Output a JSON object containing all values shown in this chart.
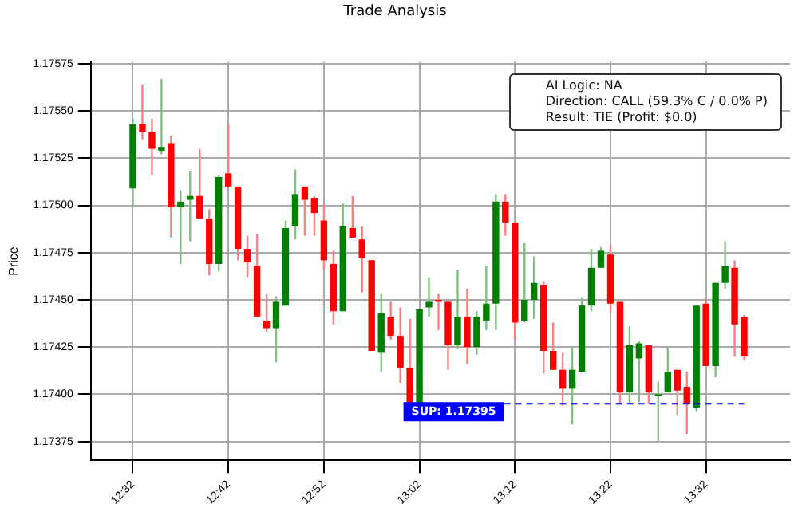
{
  "chart_data": {
    "type": "candlestick",
    "title": "Trade Analysis",
    "ylabel": "Price",
    "x": [
      12.5333,
      12.55,
      12.5667,
      12.5833,
      12.6,
      12.6167,
      12.6333,
      12.65,
      12.6667,
      12.6833,
      12.7,
      12.7167,
      12.7333,
      12.75,
      12.7667,
      12.7833,
      12.8,
      12.8167,
      12.8333,
      12.85,
      12.8667,
      12.8833,
      12.9,
      12.9167,
      12.9333,
      12.95,
      12.9667,
      12.9833,
      13,
      13.0167,
      13.0333,
      13.05,
      13.0667,
      13.0833,
      13.1,
      13.1167,
      13.1333,
      13.15,
      13.1667,
      13.1833,
      13.2,
      13.2167,
      13.2333,
      13.25,
      13.2667,
      13.2833,
      13.3,
      13.3167,
      13.3333,
      13.35,
      13.3667,
      13.3833,
      13.4,
      13.4167,
      13.4333,
      13.45,
      13.4667,
      13.4833,
      13.5,
      13.5167,
      13.5333,
      13.55,
      13.5667,
      13.5833,
      13.6
    ],
    "ohlc": [
      [
        1.17509,
        1.17546,
        1.17499,
        1.17543
      ],
      [
        1.17543,
        1.17564,
        1.17535,
        1.17539
      ],
      [
        1.17539,
        1.17546,
        1.17516,
        1.1753
      ],
      [
        1.17529,
        1.17567,
        1.17527,
        1.17531
      ],
      [
        1.17533,
        1.17537,
        1.17483,
        1.17499
      ],
      [
        1.17499,
        1.17508,
        1.17469,
        1.17502
      ],
      [
        1.17503,
        1.17518,
        1.17481,
        1.17505
      ],
      [
        1.17505,
        1.1753,
        1.17493,
        1.17493
      ],
      [
        1.17493,
        1.17498,
        1.17463,
        1.17469
      ],
      [
        1.17469,
        1.17516,
        1.17465,
        1.17515
      ],
      [
        1.17517,
        1.17543,
        1.1751,
        1.1751
      ],
      [
        1.1751,
        1.1751,
        1.17471,
        1.17477
      ],
      [
        1.17477,
        1.17484,
        1.17462,
        1.1747
      ],
      [
        1.17468,
        1.17485,
        1.17441,
        1.17441
      ],
      [
        1.17439,
        1.17453,
        1.17433,
        1.17435
      ],
      [
        1.17435,
        1.17452,
        1.17417,
        1.17449
      ],
      [
        1.17447,
        1.17492,
        1.17447,
        1.17488
      ],
      [
        1.17489,
        1.17519,
        1.17482,
        1.17506
      ],
      [
        1.1751,
        1.1751,
        1.17484,
        1.17503
      ],
      [
        1.17504,
        1.17505,
        1.17484,
        1.17496
      ],
      [
        1.17492,
        1.17501,
        1.17466,
        1.17471
      ],
      [
        1.17469,
        1.17476,
        1.17437,
        1.17444
      ],
      [
        1.17444,
        1.17501,
        1.17444,
        1.17489
      ],
      [
        1.17488,
        1.17505,
        1.17483,
        1.17483
      ],
      [
        1.17482,
        1.17489,
        1.17454,
        1.17472
      ],
      [
        1.17471,
        1.17471,
        1.17423,
        1.17423
      ],
      [
        1.17422,
        1.17453,
        1.17412,
        1.17443
      ],
      [
        1.17441,
        1.17449,
        1.17429,
        1.17431
      ],
      [
        1.17431,
        1.17446,
        1.17406,
        1.17414
      ],
      [
        1.17414,
        1.1744,
        1.17395,
        1.17395
      ],
      [
        1.17395,
        1.17445,
        1.17395,
        1.17445
      ],
      [
        1.17446,
        1.17462,
        1.17441,
        1.17449
      ],
      [
        1.1745,
        1.17453,
        1.17434,
        1.17449
      ],
      [
        1.17449,
        1.17449,
        1.17413,
        1.17426
      ],
      [
        1.17426,
        1.17466,
        1.17424,
        1.17441
      ],
      [
        1.17441,
        1.17456,
        1.17416,
        1.17425
      ],
      [
        1.17425,
        1.17444,
        1.17421,
        1.17441
      ],
      [
        1.17439,
        1.17468,
        1.17434,
        1.17448
      ],
      [
        1.17448,
        1.17506,
        1.17434,
        1.17502
      ],
      [
        1.17502,
        1.17506,
        1.17484,
        1.17491
      ],
      [
        1.17491,
        1.17491,
        1.17429,
        1.17438
      ],
      [
        1.17439,
        1.1748,
        1.17438,
        1.1745
      ],
      [
        1.1745,
        1.17473,
        1.1744,
        1.17459
      ],
      [
        1.17458,
        1.1746,
        1.17411,
        1.17423
      ],
      [
        1.17423,
        1.17438,
        1.17413,
        1.17413
      ],
      [
        1.17413,
        1.17422,
        1.17394,
        1.17403
      ],
      [
        1.17403,
        1.17425,
        1.17384,
        1.17413
      ],
      [
        1.17412,
        1.17451,
        1.17412,
        1.17447
      ],
      [
        1.17447,
        1.17477,
        1.17444,
        1.17467
      ],
      [
        1.17467,
        1.17478,
        1.17467,
        1.17476
      ],
      [
        1.17474,
        1.17479,
        1.17443,
        1.17448
      ],
      [
        1.17449,
        1.17449,
        1.17395,
        1.17401
      ],
      [
        1.17401,
        1.17436,
        1.17395,
        1.17426
      ],
      [
        1.17419,
        1.17428,
        1.17396,
        1.17427
      ],
      [
        1.17426,
        1.17426,
        1.17395,
        1.17401
      ],
      [
        1.17399,
        1.17407,
        1.17375,
        1.174
      ],
      [
        1.17401,
        1.17425,
        1.17401,
        1.17412
      ],
      [
        1.17413,
        1.17413,
        1.17389,
        1.17402
      ],
      [
        1.17404,
        1.17412,
        1.17379,
        1.17395
      ],
      [
        1.17393,
        1.17447,
        1.17391,
        1.17447
      ],
      [
        1.17448,
        1.17451,
        1.17415,
        1.17415
      ],
      [
        1.17415,
        1.17459,
        1.17409,
        1.17459
      ],
      [
        1.17459,
        1.17481,
        1.17456,
        1.17468
      ],
      [
        1.17467,
        1.17471,
        1.1742,
        1.17437
      ],
      [
        1.17441,
        1.17442,
        1.17418,
        1.1742
      ]
    ],
    "colors": [
      "#008000",
      "#ff0000",
      "#ff0000",
      "#008000",
      "#ff0000",
      "#008000",
      "#008000",
      "#ff0000",
      "#ff0000",
      "#008000",
      "#ff0000",
      "#ff0000",
      "#ff0000",
      "#ff0000",
      "#ff0000",
      "#008000",
      "#008000",
      "#008000",
      "#ff0000",
      "#ff0000",
      "#ff0000",
      "#ff0000",
      "#008000",
      "#ff0000",
      "#ff0000",
      "#ff0000",
      "#008000",
      "#ff0000",
      "#ff0000",
      "#ff0000",
      "#008000",
      "#008000",
      "#ff0000",
      "#ff0000",
      "#008000",
      "#ff0000",
      "#008000",
      "#008000",
      "#008000",
      "#ff0000",
      "#ff0000",
      "#008000",
      "#008000",
      "#ff0000",
      "#ff0000",
      "#ff0000",
      "#008000",
      "#008000",
      "#008000",
      "#008000",
      "#ff0000",
      "#ff0000",
      "#008000",
      "#008000",
      "#ff0000",
      "#008000",
      "#008000",
      "#ff0000",
      "#ff0000",
      "#008000",
      "#ff0000",
      "#008000",
      "#008000",
      "#ff0000",
      "#ff0000"
    ],
    "xlim": [
      12.46,
      13.68
    ],
    "xticks": [
      {
        "value": 12.5333,
        "label": "12:32"
      },
      {
        "value": 12.7,
        "label": "12:42"
      },
      {
        "value": 12.8667,
        "label": "12:52"
      },
      {
        "value": 13.0333,
        "label": "13:02"
      },
      {
        "value": 13.2,
        "label": "13:12"
      },
      {
        "value": 13.3667,
        "label": "13:22"
      },
      {
        "value": 13.5333,
        "label": "13:32"
      }
    ],
    "ylim": [
      1.17365,
      1.17576
    ],
    "yticks": [
      1.17375,
      {
        "value": 1.174,
        "label": "1.17400"
      },
      1.17425,
      {
        "value": 1.1745,
        "label": "1.17450"
      },
      1.17475,
      {
        "value": 1.175,
        "label": "1.17500"
      },
      1.17525,
      {
        "value": 1.1755,
        "label": "1.17550"
      },
      1.17575
    ],
    "ref_lines": [
      {
        "axis": "y",
        "value": 1.17395,
        "label": "SUP: 1.17395",
        "color": "#0000ff",
        "line_style": "dashed"
      }
    ],
    "annotations": [
      "AI Logic: NA",
      "Direction: CALL (59.3% C / 0.0% P)",
      "Result: TIE (Profit: $0.0)"
    ],
    "grid": true,
    "legend": false
  }
}
